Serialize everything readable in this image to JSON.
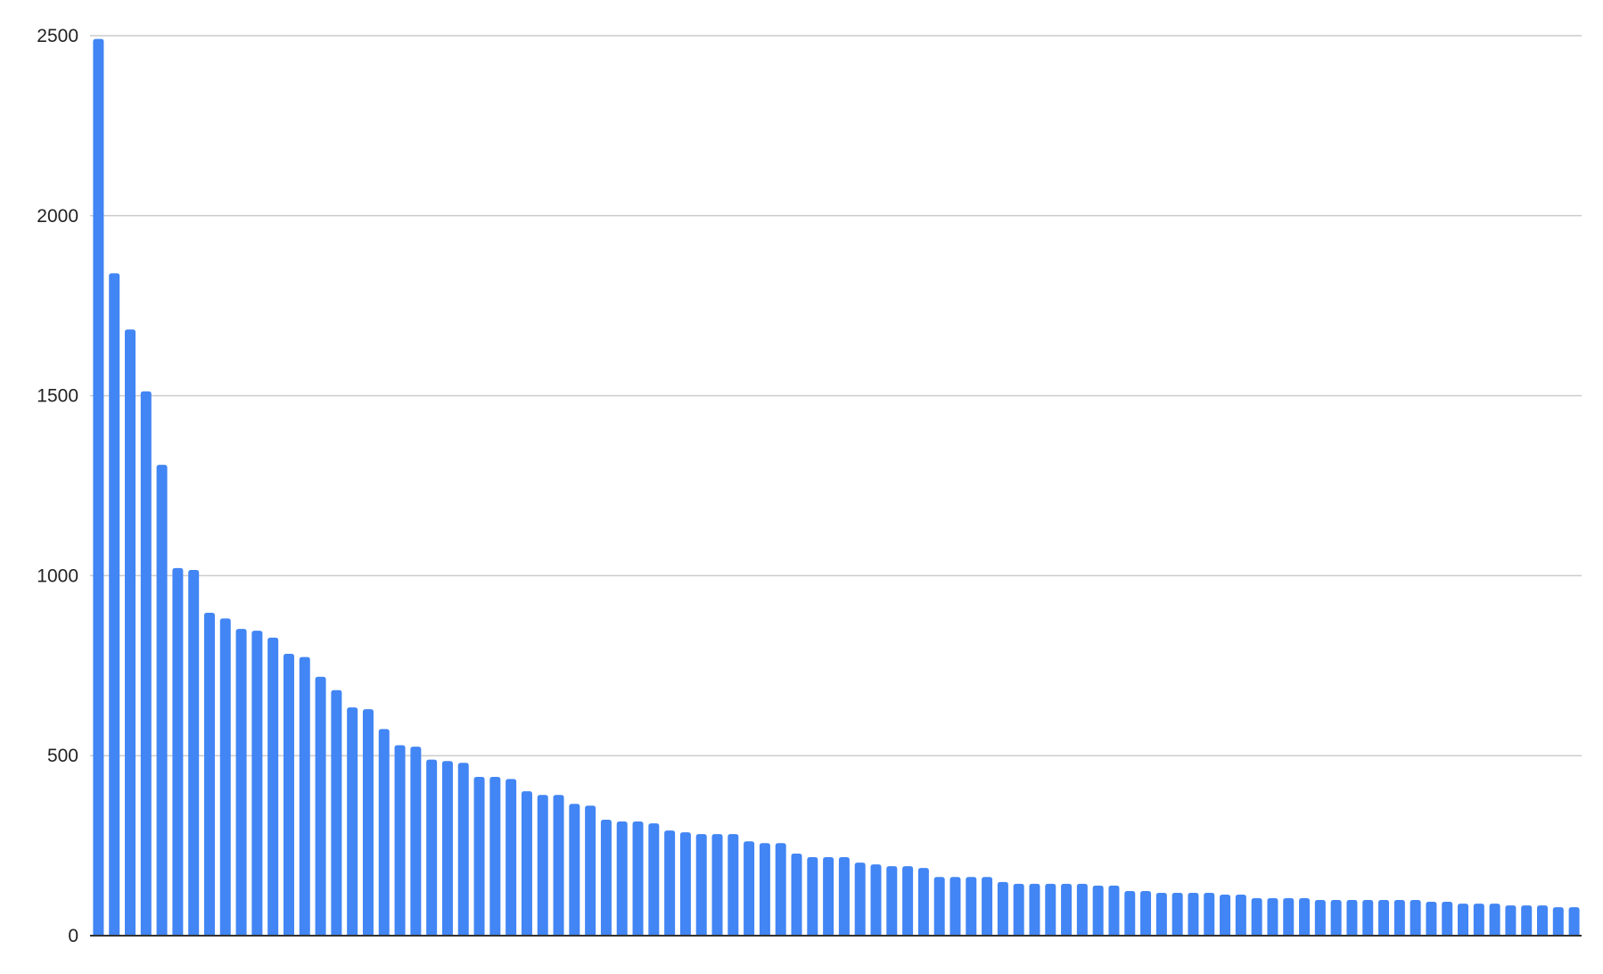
{
  "chart_data": {
    "type": "bar",
    "title": "",
    "xlabel": "",
    "ylabel": "",
    "ylim": [
      0,
      2500
    ],
    "yticks": [
      "0",
      "500",
      "1000",
      "1500",
      "2000",
      "2500"
    ],
    "grid": true,
    "legend": "none",
    "bar_color": "#4285f4",
    "values": [
      2491,
      1840,
      1684,
      1512,
      1308,
      1021,
      1016,
      897,
      881,
      852,
      847,
      828,
      783,
      774,
      719,
      682,
      634,
      629,
      574,
      529,
      525,
      489,
      485,
      480,
      441,
      441,
      435,
      401,
      391,
      391,
      366,
      361,
      322,
      317,
      317,
      312,
      292,
      287,
      282,
      282,
      282,
      262,
      257,
      257,
      228,
      218,
      218,
      218,
      203,
      198,
      193,
      193,
      188,
      163,
      163,
      163,
      163,
      149,
      144,
      144,
      144,
      144,
      144,
      139,
      139,
      124,
      124,
      119,
      119,
      119,
      119,
      114,
      114,
      104,
      104,
      104,
      104,
      99,
      99,
      99,
      99,
      99,
      99,
      99,
      94,
      94,
      89,
      89,
      89,
      84,
      84,
      84,
      79,
      79
    ]
  }
}
